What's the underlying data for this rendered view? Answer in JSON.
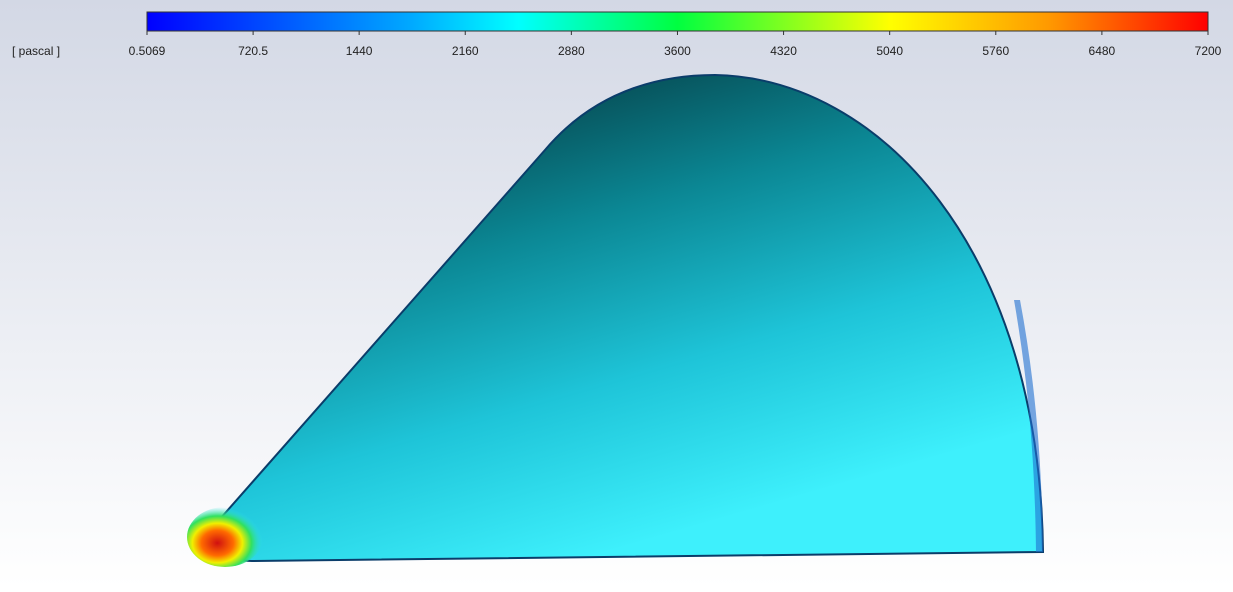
{
  "colorbar": {
    "unit": "[ pascal ]",
    "range": [
      0.5069,
      7200
    ],
    "ticks": [
      0.5069,
      720.5,
      1440,
      2160,
      2880,
      3600,
      4320,
      5040,
      5760,
      6480,
      7200
    ]
  }
}
